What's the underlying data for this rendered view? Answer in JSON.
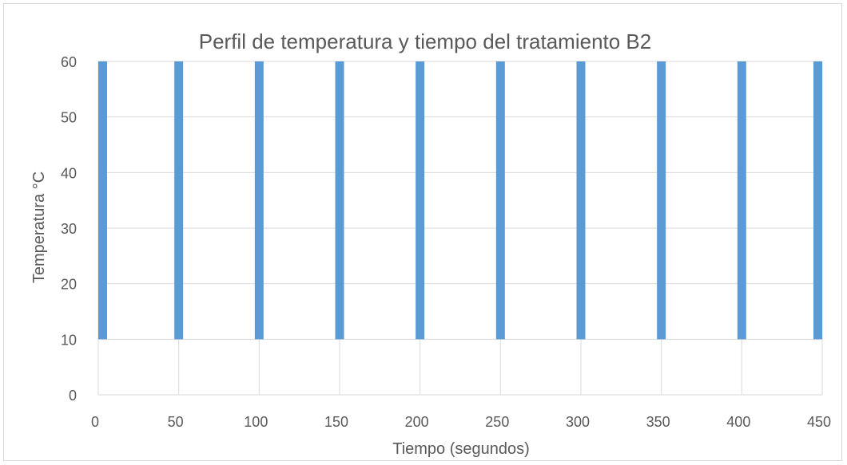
{
  "chart_data": {
    "type": "bar",
    "title": "Perfil de temperatura y tiempo del tratamiento B2",
    "xlabel": "Tiempo (segundos)",
    "ylabel": "Temperatura °C",
    "x_ticks": [
      0,
      50,
      100,
      150,
      200,
      250,
      300,
      350,
      400,
      450
    ],
    "y_ticks": [
      0,
      10,
      20,
      30,
      40,
      50,
      60
    ],
    "xlim": [
      0,
      450
    ],
    "ylim": [
      0,
      60
    ],
    "grid": true,
    "legend": "none",
    "series_color": "#5b9bd5",
    "bars": [
      {
        "x": 0,
        "low": 10,
        "high": 60
      },
      {
        "x": 50,
        "low": 10,
        "high": 60
      },
      {
        "x": 100,
        "low": 10,
        "high": 60
      },
      {
        "x": 150,
        "low": 10,
        "high": 60
      },
      {
        "x": 200,
        "low": 10,
        "high": 60
      },
      {
        "x": 250,
        "low": 10,
        "high": 60
      },
      {
        "x": 300,
        "low": 10,
        "high": 60
      },
      {
        "x": 350,
        "low": 10,
        "high": 60
      },
      {
        "x": 400,
        "low": 10,
        "high": 60
      },
      {
        "x": 450,
        "low": 10,
        "high": 60
      }
    ]
  }
}
